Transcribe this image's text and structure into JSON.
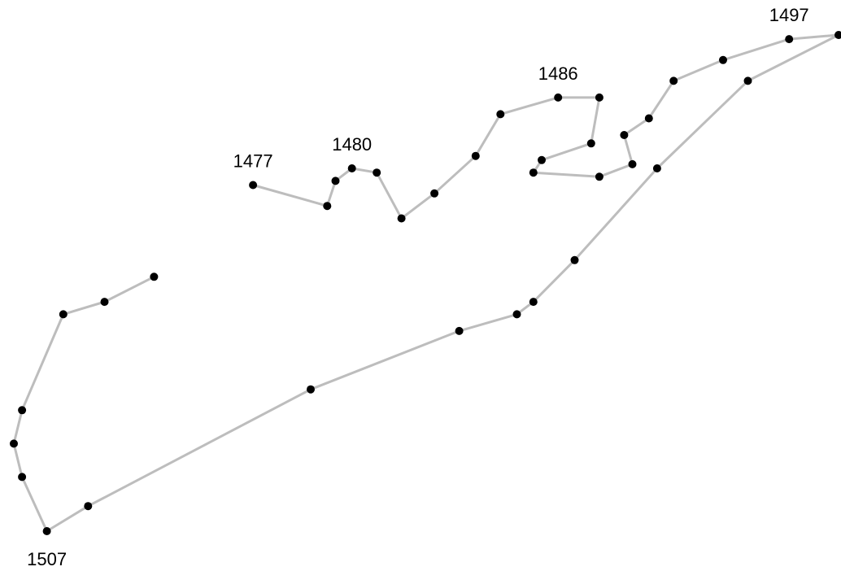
{
  "chart_data": {
    "type": "line",
    "title": "",
    "xlabel": "",
    "ylabel": "",
    "points": [
      {
        "x": 0.29,
        "y": 0.6,
        "label": "1477"
      },
      {
        "x": 0.38,
        "y": 0.55
      },
      {
        "x": 0.39,
        "y": 0.61
      },
      {
        "x": 0.41,
        "y": 0.64,
        "label": "1480"
      },
      {
        "x": 0.44,
        "y": 0.63
      },
      {
        "x": 0.47,
        "y": 0.52
      },
      {
        "x": 0.51,
        "y": 0.58
      },
      {
        "x": 0.56,
        "y": 0.67
      },
      {
        "x": 0.59,
        "y": 0.77
      },
      {
        "x": 0.66,
        "y": 0.81,
        "label": "1486"
      },
      {
        "x": 0.71,
        "y": 0.81
      },
      {
        "x": 0.7,
        "y": 0.7
      },
      {
        "x": 0.64,
        "y": 0.66
      },
      {
        "x": 0.63,
        "y": 0.63
      },
      {
        "x": 0.71,
        "y": 0.62
      },
      {
        "x": 0.75,
        "y": 0.65
      },
      {
        "x": 0.74,
        "y": 0.72
      },
      {
        "x": 0.77,
        "y": 0.76
      },
      {
        "x": 0.8,
        "y": 0.85
      },
      {
        "x": 0.86,
        "y": 0.9
      },
      {
        "x": 0.94,
        "y": 0.95,
        "label": "1497"
      },
      {
        "x": 1.0,
        "y": 0.96
      },
      {
        "x": 0.89,
        "y": 0.85
      },
      {
        "x": 0.78,
        "y": 0.64
      },
      {
        "x": 0.68,
        "y": 0.42
      },
      {
        "x": 0.63,
        "y": 0.32
      },
      {
        "x": 0.61,
        "y": 0.29
      },
      {
        "x": 0.54,
        "y": 0.25
      },
      {
        "x": 0.36,
        "y": 0.11
      },
      {
        "x": 0.09,
        "y": -0.17
      },
      {
        "x": 0.04,
        "y": -0.23,
        "label": "1507"
      },
      {
        "x": 0.01,
        "y": -0.1
      },
      {
        "x": 0.0,
        "y": -0.02
      },
      {
        "x": 0.01,
        "y": 0.06
      },
      {
        "x": 0.06,
        "y": 0.29
      },
      {
        "x": 0.11,
        "y": 0.32
      },
      {
        "x": 0.17,
        "y": 0.38
      }
    ],
    "colors": {
      "line": "#bdbdbd",
      "marker": "#000000",
      "text": "#000000"
    }
  }
}
